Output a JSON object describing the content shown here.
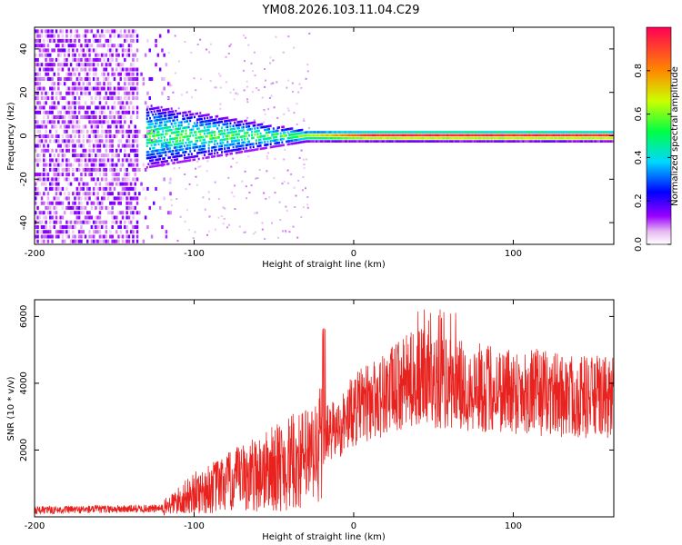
{
  "title": "YM08.2026.103.11.04.C29",
  "chart_data": [
    {
      "type": "heatmap",
      "xlabel": "Height of straight line (km)",
      "ylabel": "Frequency (Hz)",
      "xlim": [
        -200,
        163
      ],
      "ylim": [
        -50,
        50
      ],
      "xticks": [
        -200,
        -100,
        0,
        100
      ],
      "yticks": [
        -40,
        -20,
        0,
        20,
        40
      ],
      "colorbar": {
        "label": "Normalized spectral amplitude",
        "range": [
          0.0,
          1.0
        ],
        "ticks": [
          "0.0",
          "0.2",
          "0.4",
          "0.6",
          "0.8"
        ]
      },
      "description_values": {
        "noise_region_x": [
          -200,
          -115
        ],
        "signal_center_freq": 0
      }
    },
    {
      "type": "line",
      "xlabel": "Height of straight line (km)",
      "ylabel": "SNR (10 * v/v)",
      "xlim": [
        -200,
        163
      ],
      "ylim": [
        0,
        6500
      ],
      "xticks": [
        -200,
        -100,
        0,
        100
      ],
      "yticks": [
        2000,
        4000,
        6000
      ],
      "color": "#e8231f",
      "envelope_x": [
        -200,
        -120,
        -100,
        -80,
        -60,
        -40,
        -25,
        -18,
        -10,
        0,
        20,
        40,
        55,
        70,
        100,
        130,
        163
      ],
      "envelope_y": [
        200,
        250,
        700,
        1000,
        1300,
        1600,
        1800,
        2500,
        2600,
        3200,
        3700,
        4200,
        4000,
        3900,
        3800,
        3650,
        3550
      ]
    }
  ]
}
